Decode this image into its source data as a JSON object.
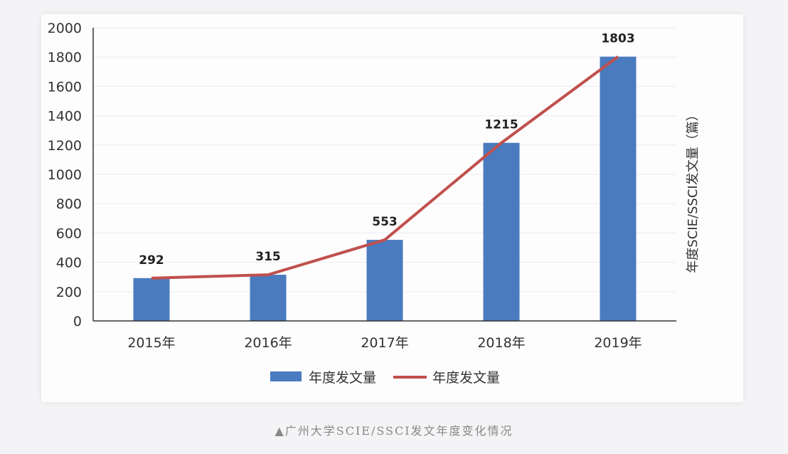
{
  "chart_data": {
    "type": "bar+line",
    "title": "",
    "categories": [
      "2015年",
      "2016年",
      "2017年",
      "2018年",
      "2019年"
    ],
    "series": [
      {
        "name": "年度发文量",
        "type": "bar",
        "color": "#4a7bbf",
        "values": [
          292,
          315,
          553,
          1215,
          1803
        ]
      },
      {
        "name": "年度发文量",
        "type": "line",
        "color": "#c0504d",
        "values": [
          292,
          315,
          553,
          1215,
          1803
        ]
      }
    ],
    "data_labels": [
      "292",
      "315",
      "553",
      "1215",
      "1803"
    ],
    "xlabel": "",
    "ylabel": "年度SCIE/SSCI发文量（篇）",
    "ylim": [
      0,
      2000
    ],
    "yticks": [
      "0",
      "200",
      "400",
      "600",
      "800",
      "1000",
      "1200",
      "1400",
      "1600",
      "1800",
      "2000"
    ],
    "grid": true,
    "legend_position": "bottom"
  },
  "legend": {
    "bar_label": "年度发文量",
    "line_label": "年度发文量"
  },
  "caption": "▲广州大学SCIE/SSCI发文年度变化情况"
}
